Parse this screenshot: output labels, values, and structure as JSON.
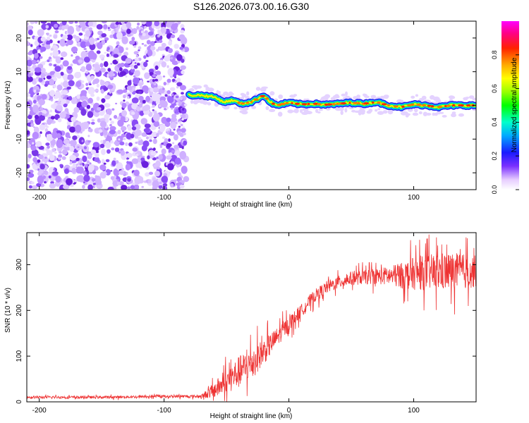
{
  "title": "S126.2026.073.00.16.G30",
  "chart_data": [
    {
      "type": "heatmap",
      "name": "spectrogram",
      "xlabel": "Height of straight line (km)",
      "ylabel": "Frequency (Hz)",
      "xlim": [
        -210,
        150
      ],
      "ylim": [
        -25,
        25
      ],
      "xticks": [
        -200,
        -100,
        0,
        100
      ],
      "yticks": [
        -20,
        -10,
        0,
        10,
        20
      ],
      "noise_region_x": [
        -210,
        -80
      ],
      "signal_line": {
        "x": [
          -80,
          -70,
          -60,
          -52,
          -45,
          -38,
          -30,
          -25,
          -20,
          -15,
          -10,
          0,
          10,
          20,
          30,
          40,
          50,
          60,
          70,
          80,
          90,
          100,
          110,
          120,
          130,
          140,
          150
        ],
        "freq": [
          3,
          3,
          2.5,
          1,
          1.5,
          0.5,
          1,
          2,
          3,
          1,
          0,
          0.8,
          0.3,
          0.5,
          0.2,
          0.5,
          0.8,
          0.5,
          1,
          0,
          -0.5,
          0.3,
          0,
          -0.5,
          0,
          0,
          0
        ]
      },
      "colorbar": {
        "label": "Normalized spectral amplitude",
        "range": [
          0.0,
          1.0
        ],
        "ticks": [
          "0.0",
          "0.2",
          "0.4",
          "0.6",
          "0.8"
        ],
        "tick_values": [
          0.0,
          0.2,
          0.4,
          0.6,
          0.8
        ]
      }
    },
    {
      "type": "line",
      "name": "snr",
      "xlabel": "Height of straight line (km)",
      "ylabel": "SNR (10 * v/v)",
      "xlim": [
        -210,
        150
      ],
      "ylim": [
        0,
        370
      ],
      "xticks": [
        -200,
        -100,
        0,
        100
      ],
      "yticks": [
        0,
        100,
        200,
        300
      ],
      "color": "#ee3333",
      "series": [
        {
          "name": "SNR",
          "x": [
            -210,
            -150,
            -100,
            -70,
            -60,
            -50,
            -40,
            -30,
            -20,
            -10,
            0,
            10,
            20,
            30,
            40,
            50,
            60,
            70,
            80,
            90,
            100,
            110,
            120,
            130,
            140,
            150
          ],
          "y": [
            10,
            10,
            12,
            12,
            25,
            45,
            65,
            85,
            110,
            140,
            170,
            200,
            230,
            250,
            262,
            270,
            272,
            275,
            275,
            276,
            280,
            282,
            285,
            285,
            285,
            285
          ],
          "spread": [
            4,
            4,
            4,
            5,
            25,
            40,
            50,
            50,
            40,
            30,
            25,
            20,
            20,
            20,
            20,
            22,
            22,
            25,
            30,
            40,
            50,
            55,
            60,
            60,
            55,
            50
          ]
        }
      ]
    }
  ]
}
